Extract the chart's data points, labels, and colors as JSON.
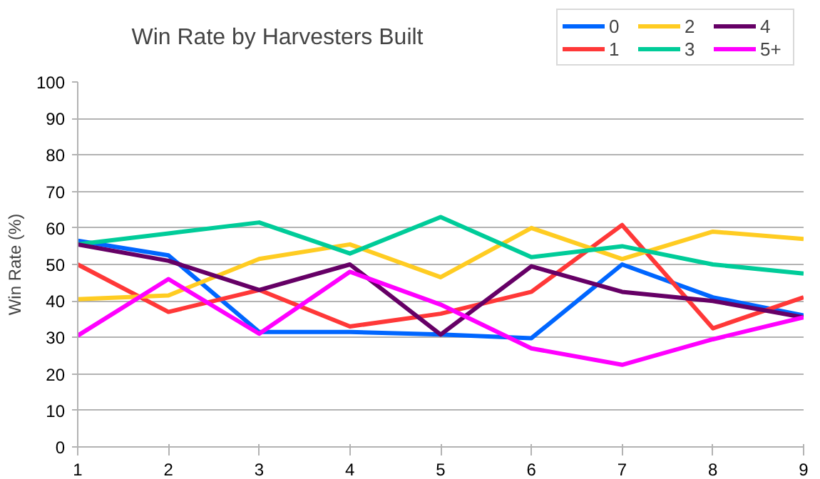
{
  "chart_data": {
    "type": "line",
    "title": "Win Rate by Harvesters Built",
    "ylabel": "Win Rate (%)",
    "x": [
      1,
      2,
      3,
      4,
      5,
      6,
      7,
      8,
      9
    ],
    "xlim": [
      1,
      9
    ],
    "xticks": [
      1,
      2,
      3,
      4,
      5,
      6,
      7,
      8,
      9
    ],
    "ylim": [
      0,
      100
    ],
    "yticks": [
      0,
      10,
      20,
      30,
      40,
      50,
      60,
      70,
      80,
      90,
      100
    ],
    "grid": "y",
    "legend": "top right",
    "marker": "none",
    "line_style": "solid",
    "series": [
      {
        "name": "0",
        "color": "#0066ff",
        "values": [
          56.5,
          52.5,
          31.5,
          31.5,
          30.8,
          29.8,
          50,
          41,
          36
        ]
      },
      {
        "name": "1",
        "color": "#ff3838",
        "values": [
          50,
          37,
          43,
          33,
          36.5,
          42.5,
          60.8,
          32.5,
          41
        ]
      },
      {
        "name": "2",
        "color": "#ffcc22",
        "values": [
          40.5,
          41.5,
          51.5,
          55.5,
          46.5,
          60,
          51.5,
          59,
          57
        ]
      },
      {
        "name": "3",
        "color": "#00cc99",
        "values": [
          55.5,
          58.5,
          61.5,
          53,
          63,
          52,
          55,
          50,
          47.5
        ]
      },
      {
        "name": "4",
        "color": "#660066",
        "values": [
          55.5,
          51,
          43,
          50,
          30.8,
          49.5,
          42.5,
          40,
          35.5
        ]
      },
      {
        "name": "5+",
        "color": "#ff00ff",
        "values": [
          30.5,
          46,
          31,
          48,
          39,
          27,
          22.5,
          29.5,
          35.5
        ]
      }
    ]
  }
}
